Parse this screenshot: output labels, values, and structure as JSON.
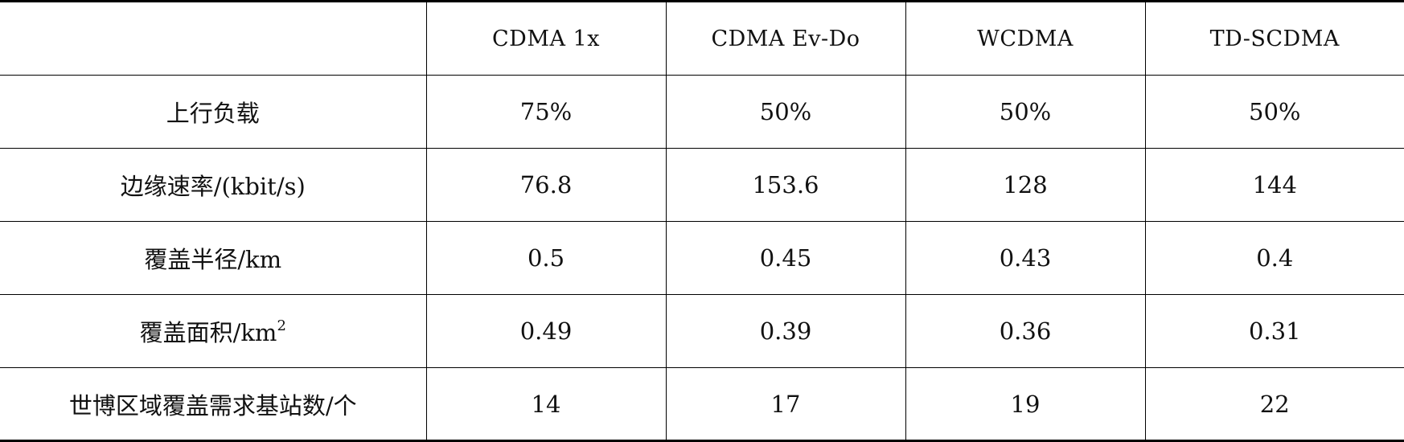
{
  "table": {
    "columns": [
      "",
      "CDMA 1x",
      "CDMA Ev-Do",
      "WCDMA",
      "TD-SCDMA"
    ],
    "rows": [
      {
        "label": "上行负载",
        "values": [
          "75%",
          "50%",
          "50%",
          "50%"
        ]
      },
      {
        "label": "边缘速率/(kbit/s)",
        "values": [
          "76.8",
          "153.6",
          "128",
          "144"
        ]
      },
      {
        "label": "覆盖半径/km",
        "values": [
          "0.5",
          "0.45",
          "0.43",
          "0.4"
        ]
      },
      {
        "label_main": "覆盖面积/km",
        "label_sup": "2",
        "values": [
          "0.49",
          "0.39",
          "0.36",
          "0.31"
        ]
      },
      {
        "label": "世博区域覆盖需求基站数/个",
        "values": [
          "14",
          "17",
          "19",
          "22"
        ]
      }
    ]
  }
}
